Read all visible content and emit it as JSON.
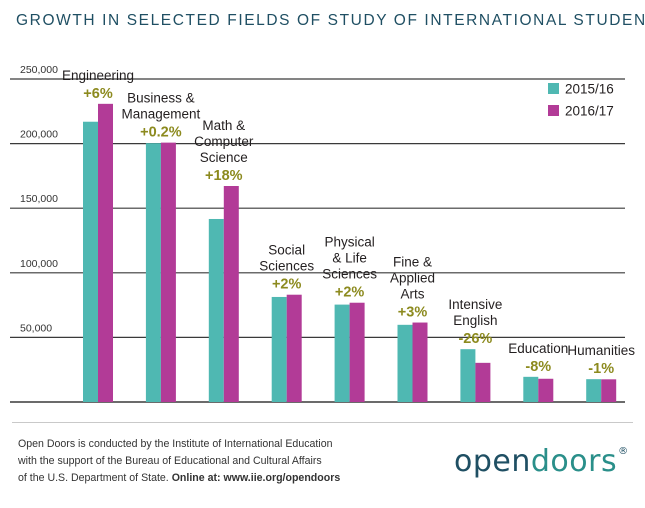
{
  "chart_data": {
    "type": "bar",
    "title": "GROWTH IN SELECTED FIELDS OF STUDY OF INTERNATIONAL STUDENTS",
    "xlabel": "",
    "ylabel": "",
    "ylim": [
      0,
      250000
    ],
    "yticks": [
      50000,
      100000,
      150000,
      200000,
      250000
    ],
    "ytick_labels": [
      "50,000",
      "100,000",
      "150,000",
      "200,000",
      "250,000"
    ],
    "grid": true,
    "legend_position": "top-right",
    "categories": [
      {
        "lines": [
          "Engineering"
        ],
        "change": "+6%"
      },
      {
        "lines": [
          "Business &",
          "Management"
        ],
        "change": "+0.2%"
      },
      {
        "lines": [
          "Math &",
          "Computer",
          "Science"
        ],
        "change": "+18%"
      },
      {
        "lines": [
          "Social",
          "Sciences"
        ],
        "change": "+2%"
      },
      {
        "lines": [
          "Physical",
          "& Life",
          "Sciences"
        ],
        "change": "+2%"
      },
      {
        "lines": [
          "Fine &",
          "Applied",
          "Arts"
        ],
        "change": "+3%"
      },
      {
        "lines": [
          "Intensive",
          "English"
        ],
        "change": "-26%"
      },
      {
        "lines": [
          "Education"
        ],
        "change": "-8%"
      },
      {
        "lines": [
          "Humanities"
        ],
        "change": "-1%"
      }
    ],
    "series": [
      {
        "name": "2015/16",
        "color": "#4fb8b2",
        "values": [
          216932,
          200312,
          141651,
          81304,
          75385,
          59736,
          40877,
          19483,
          17664
        ]
      },
      {
        "name": "2016/17",
        "color": "#b23b97",
        "values": [
          230780,
          200754,
          167180,
          83046,
          76838,
          61506,
          30309,
          17984,
          17561
        ]
      }
    ],
    "change_color": "#8c8a1e"
  },
  "footer": {
    "line1": "Open Doors is conducted by the Institute of International Education",
    "line2": "with the support of the Bureau of Educational and Cultural Affairs",
    "line3_plain": "of the U.S. Department of State. ",
    "line3_bold": "Online at: www.iie.org/opendoors"
  },
  "logo": {
    "part1": "open",
    "part2": "doors",
    "reg": "®"
  }
}
